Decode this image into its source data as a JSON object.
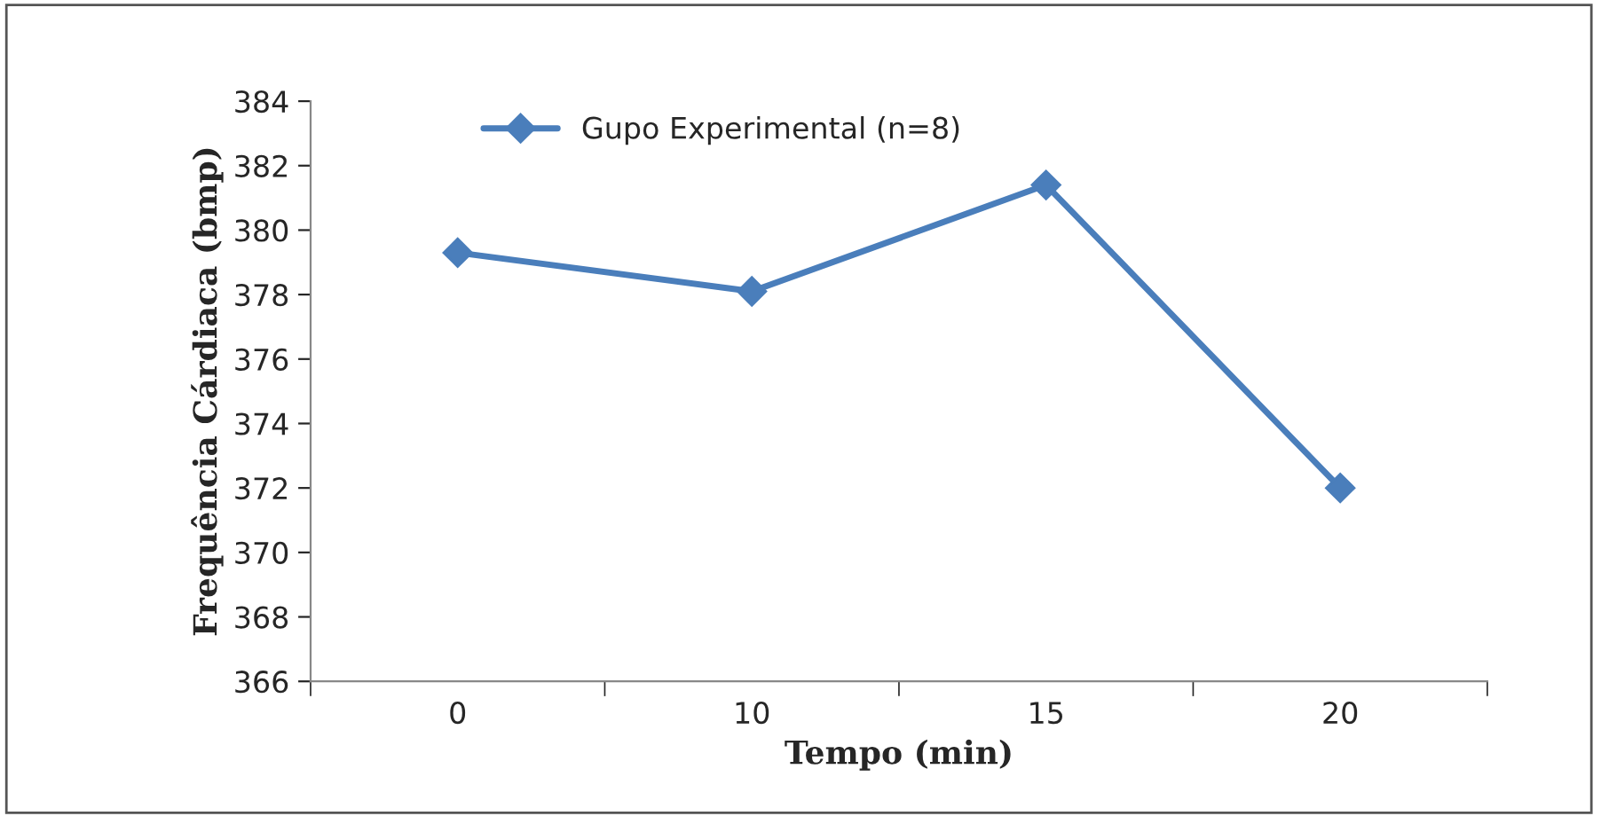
{
  "chart_data": {
    "type": "line",
    "xlabel": "Tempo (min)",
    "ylabel": "Frequência Cárdiaca (bmp)",
    "categories": [
      "0",
      "10",
      "15",
      "20"
    ],
    "series": [
      {
        "name": "Gupo Experimental (n=8)",
        "color": "#4a7ebb",
        "values": [
          379.3,
          378.1,
          381.4,
          372.0
        ]
      }
    ],
    "ylim": [
      366,
      384
    ],
    "yticks": [
      366,
      368,
      370,
      372,
      374,
      376,
      378,
      380,
      382,
      384
    ],
    "grid": false,
    "legend": "top",
    "marker": "diamond",
    "line_style": "solid"
  }
}
